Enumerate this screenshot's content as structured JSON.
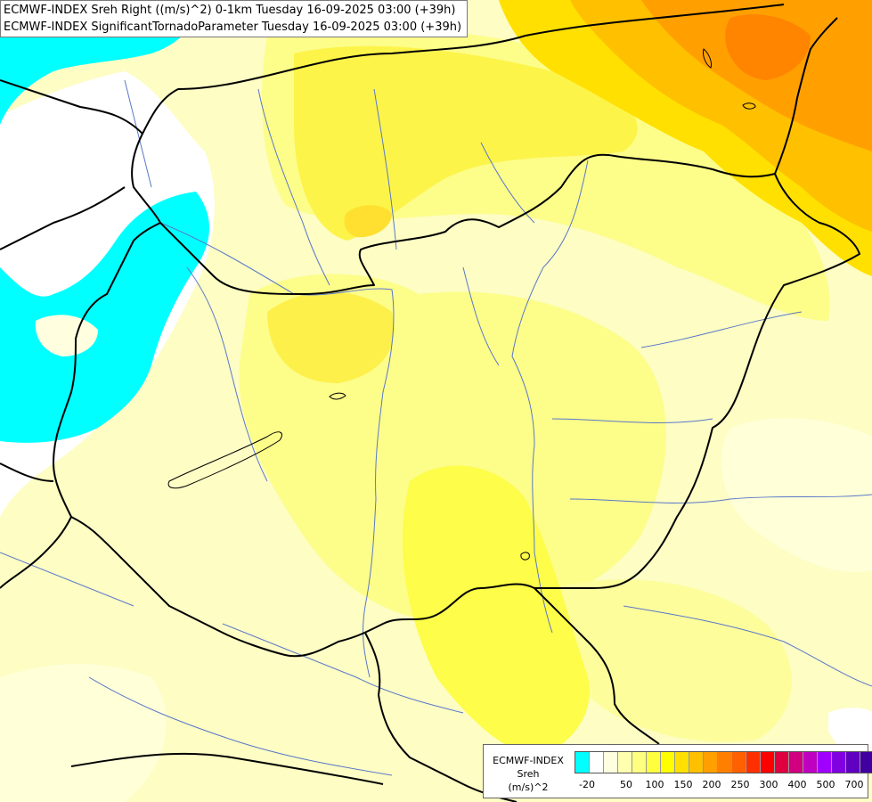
{
  "map": {
    "title_line1": "ECMWF-INDEX Sreh Right ((m/s)^2) 0-1km Tuesday 16-09-2025 03:00 (+39h)",
    "title_line2": "ECMWF-INDEX SignificantTornadoParameter Tuesday 16-09-2025 03:00 (+39h)"
  },
  "legend": {
    "model": "ECMWF-INDEX",
    "variable": "Sreh",
    "unit": "(m/s)^2",
    "colors": [
      "#00ffff",
      "#ffffff",
      "#ffffe0",
      "#ffffb0",
      "#ffff80",
      "#ffff40",
      "#ffff00",
      "#ffe000",
      "#ffc000",
      "#ffa000",
      "#ff8000",
      "#ff6000",
      "#ff3000",
      "#ff0000",
      "#e00040",
      "#d00080",
      "#c000c0",
      "#a000ff",
      "#8000e0",
      "#6000c0",
      "#4000a0",
      "#000080"
    ],
    "tick_labels": [
      "-20",
      "50",
      "100",
      "150",
      "200",
      "250",
      "300",
      "400",
      "500",
      "700"
    ]
  },
  "colors": {
    "cyan": "#00ffff",
    "white": "#ffffff",
    "pale_yellow": "#ffffc0",
    "light_yellow": "#ffff80",
    "yellow": "#ffff40",
    "bright_yellow": "#ffff00",
    "gold": "#ffe000",
    "amber": "#ffc000",
    "orange": "#ffa000",
    "dark_orange": "#ff8000",
    "border": "#000000",
    "river": "#5a78c8"
  }
}
